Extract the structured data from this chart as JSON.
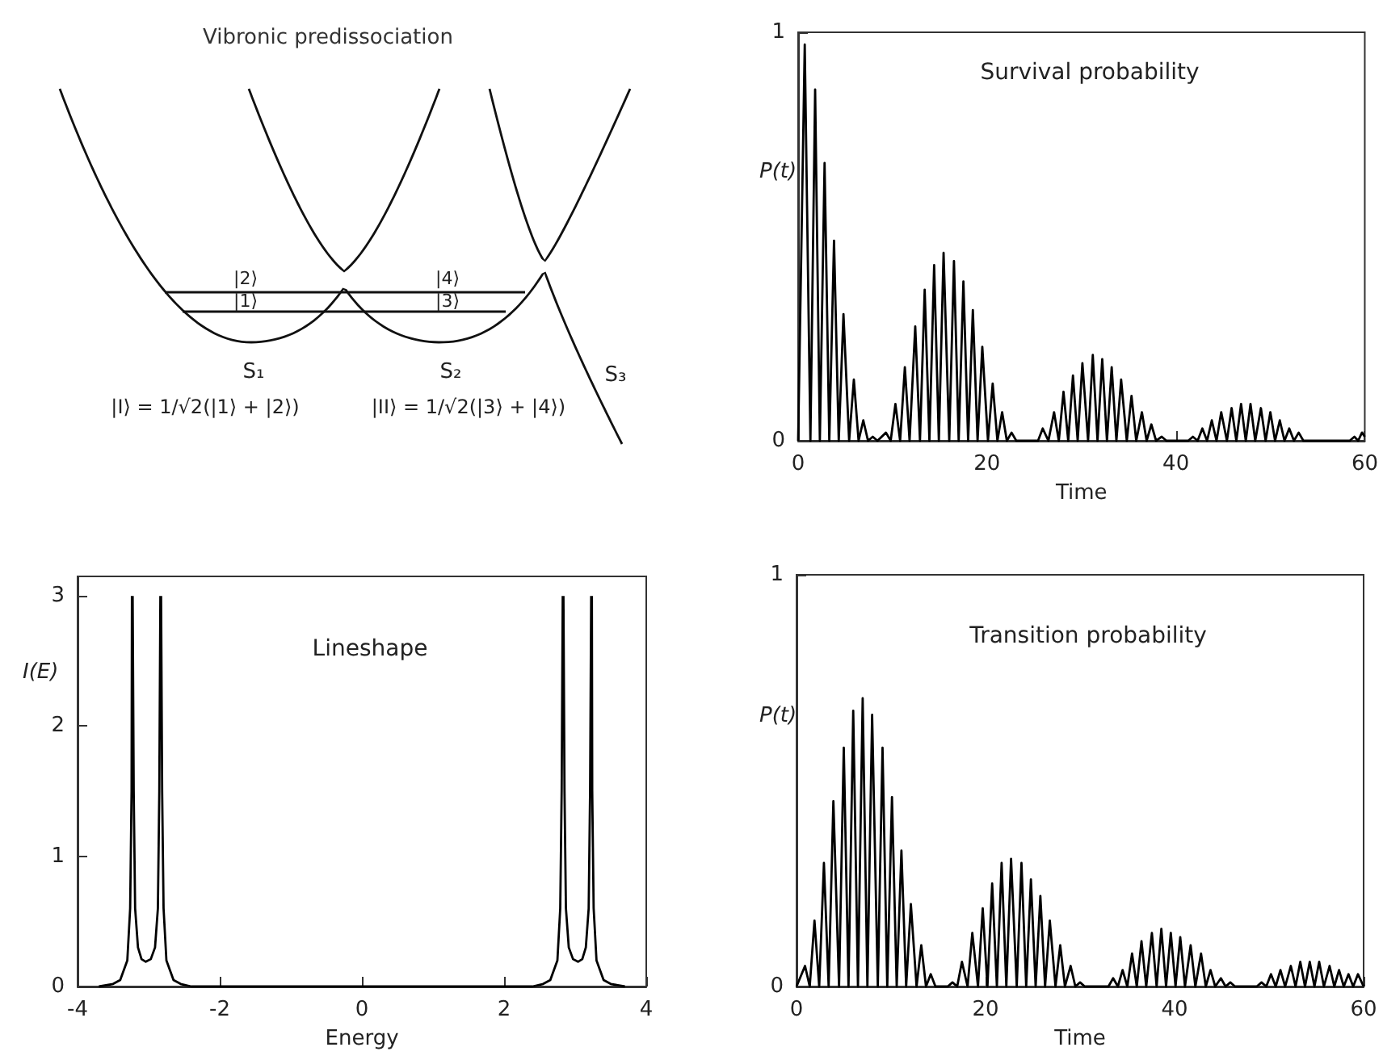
{
  "chart_data": [
    {
      "type": "other",
      "title": "Vibronic predissociation",
      "annotations": [
        "|2⟩",
        "|1⟩",
        "|4⟩",
        "|3⟩",
        "S₁",
        "S₂",
        "S₃",
        "|I⟩ = 1/√2(|1⟩ + |2⟩)",
        "|II⟩ = 1/√2(|3⟩ + |4⟩)"
      ]
    },
    {
      "type": "line",
      "title": "Survival probability",
      "xlabel": "Time",
      "ylabel": "P(t)",
      "xlim": [
        0,
        60
      ],
      "xticks": [
        0,
        20,
        40,
        60
      ],
      "ylim": [
        0,
        1
      ],
      "yticks": [
        0,
        1
      ],
      "series": [
        {
          "color": "#000000",
          "x": [
            0,
            0.7,
            1.3,
            1.8,
            2.3,
            2.8,
            3.3,
            3.8,
            4.3,
            4.8,
            5.4,
            5.9,
            6.4,
            6.9,
            7.4,
            7.9,
            8.4,
            9.3,
            9.8,
            10.3,
            10.8,
            11.3,
            11.8,
            12.4,
            12.9,
            13.4,
            13.9,
            14.4,
            14.9,
            15.4,
            16.0,
            16.5,
            17.0,
            17.5,
            18.0,
            18.5,
            19.0,
            19.5,
            20.1,
            20.6,
            21.1,
            21.6,
            22.1,
            22.6,
            23.1,
            25.4,
            25.9,
            26.5,
            27.1,
            27.6,
            28.1,
            28.6,
            29.1,
            29.6,
            30.1,
            30.7,
            31.2,
            31.7,
            32.2,
            32.7,
            33.2,
            33.7,
            34.2,
            34.8,
            35.3,
            35.8,
            36.4,
            36.9,
            37.4,
            37.9,
            38.5,
            39.0,
            41.3,
            41.8,
            42.3,
            42.8,
            43.3,
            43.8,
            44.3,
            44.8,
            45.4,
            45.9,
            46.4,
            46.9,
            47.4,
            47.9,
            48.4,
            49.0,
            49.5,
            50.0,
            50.5,
            51.0,
            51.5,
            52.0,
            52.5,
            53.0,
            53.5,
            58.4,
            58.9,
            59.3,
            59.7,
            60
          ],
          "values": [
            0,
            0.97,
            0,
            0.86,
            0,
            0.68,
            0,
            0.49,
            0,
            0.31,
            0,
            0.15,
            0,
            0.05,
            0,
            0.01,
            0,
            0.02,
            0,
            0.09,
            0,
            0.18,
            0,
            0.28,
            0,
            0.37,
            0,
            0.43,
            0,
            0.46,
            0,
            0.44,
            0,
            0.39,
            0,
            0.32,
            0,
            0.23,
            0,
            0.14,
            0,
            0.07,
            0,
            0.02,
            0,
            0,
            0.03,
            0,
            0.07,
            0,
            0.12,
            0,
            0.16,
            0,
            0.19,
            0,
            0.21,
            0,
            0.2,
            0,
            0.18,
            0,
            0.15,
            0,
            0.11,
            0,
            0.07,
            0,
            0.04,
            0,
            0.01,
            0,
            0,
            0.01,
            0,
            0.03,
            0,
            0.05,
            0,
            0.07,
            0,
            0.08,
            0,
            0.09,
            0,
            0.09,
            0,
            0.08,
            0,
            0.07,
            0,
            0.05,
            0,
            0.03,
            0,
            0.02,
            0,
            0,
            0.01,
            0,
            0.02,
            0.01
          ]
        }
      ]
    },
    {
      "type": "line",
      "title": "Lineshape",
      "xlabel": "Energy",
      "ylabel": "I(E)",
      "xlim": [
        -4,
        4
      ],
      "xticks": [
        -4,
        -2,
        0,
        2,
        4
      ],
      "ylim": [
        0,
        3.15
      ],
      "yticks": [
        0,
        1,
        2,
        3
      ],
      "series": [
        {
          "color": "#000000",
          "x": [
            -3.7,
            -3.5,
            -3.4,
            -3.3,
            -3.26,
            -3.24,
            -3.235,
            -3.23,
            -3.225,
            -3.21,
            -3.19,
            -3.15,
            -3.1,
            -3.04,
            -2.97,
            -2.91,
            -2.87,
            -2.85,
            -2.835,
            -2.83,
            -2.825,
            -2.81,
            -2.79,
            -2.75,
            -2.65,
            -2.55,
            -2.4,
            2.4,
            2.55,
            2.65,
            2.75,
            2.79,
            2.81,
            2.825,
            2.83,
            2.835,
            2.85,
            2.87,
            2.91,
            2.97,
            3.04,
            3.1,
            3.15,
            3.19,
            3.21,
            3.225,
            3.23,
            3.235,
            3.24,
            3.26,
            3.3,
            3.4,
            3.5,
            3.7
          ],
          "values": [
            0,
            0.02,
            0.05,
            0.2,
            0.6,
            1.5,
            3.0,
            null,
            3.0,
            1.5,
            0.6,
            0.3,
            0.21,
            0.19,
            0.21,
            0.3,
            0.6,
            1.5,
            3.0,
            null,
            3.0,
            1.5,
            0.6,
            0.2,
            0.05,
            0.02,
            0,
            0,
            0.02,
            0.05,
            0.2,
            0.6,
            1.5,
            3.0,
            null,
            3.0,
            1.5,
            0.6,
            0.3,
            0.21,
            0.19,
            0.21,
            0.3,
            0.6,
            1.5,
            3.0,
            null,
            3.0,
            1.5,
            0.6,
            0.2,
            0.05,
            0.02,
            0
          ]
        }
      ]
    },
    {
      "type": "line",
      "title": "Transition probability",
      "xlabel": "Time",
      "ylabel": "P(t)",
      "xlim": [
        0,
        60
      ],
      "xticks": [
        0,
        20,
        40,
        60
      ],
      "ylim": [
        0,
        1
      ],
      "yticks": [
        0,
        1
      ],
      "series": [
        {
          "color": "#000000",
          "x": [
            0,
            0.9,
            1.4,
            1.9,
            2.4,
            2.9,
            3.4,
            3.9,
            4.5,
            5.0,
            5.5,
            6.0,
            6.5,
            7.0,
            7.5,
            8.0,
            8.6,
            9.1,
            9.6,
            10.1,
            10.6,
            11.1,
            11.6,
            12.1,
            12.7,
            13.2,
            13.7,
            14.2,
            14.7,
            16.0,
            16.5,
            17.0,
            17.5,
            18.1,
            18.6,
            19.2,
            19.7,
            20.2,
            20.7,
            21.2,
            21.7,
            22.2,
            22.7,
            23.3,
            23.8,
            24.3,
            24.8,
            25.3,
            25.8,
            26.3,
            26.8,
            27.4,
            27.9,
            28.4,
            29.0,
            29.5,
            30.0,
            30.5,
            33.0,
            33.5,
            34.0,
            34.5,
            35.0,
            35.5,
            36.0,
            36.5,
            37.0,
            37.6,
            38.1,
            38.6,
            39.1,
            39.6,
            40.1,
            40.6,
            41.1,
            41.7,
            42.2,
            42.8,
            43.3,
            43.8,
            44.3,
            44.9,
            45.4,
            45.9,
            46.4,
            48.7,
            49.2,
            49.7,
            50.2,
            50.7,
            51.2,
            51.7,
            52.3,
            52.8,
            53.3,
            53.8,
            54.3,
            54.8,
            55.3,
            55.8,
            56.4,
            56.9,
            57.4,
            57.9,
            58.4,
            58.9,
            59.4,
            60
          ],
          "values": [
            0,
            0.05,
            0,
            0.16,
            0,
            0.3,
            0,
            0.45,
            0,
            0.58,
            0,
            0.67,
            0,
            0.7,
            0,
            0.66,
            0,
            0.58,
            0,
            0.46,
            0,
            0.33,
            0,
            0.2,
            0,
            0.1,
            0,
            0.03,
            0,
            0,
            0.01,
            0,
            0.06,
            0,
            0.13,
            0,
            0.19,
            0,
            0.25,
            0,
            0.3,
            0,
            0.31,
            0,
            0.3,
            0,
            0.26,
            0,
            0.22,
            0,
            0.16,
            0,
            0.1,
            0,
            0.05,
            0,
            0.01,
            0,
            0,
            0.02,
            0,
            0.04,
            0,
            0.08,
            0,
            0.11,
            0,
            0.13,
            0,
            0.14,
            0,
            0.13,
            0,
            0.12,
            0,
            0.1,
            0,
            0.08,
            0,
            0.04,
            0,
            0.02,
            0,
            0.01,
            0,
            0,
            0.01,
            0,
            0.03,
            0,
            0.04,
            0,
            0.05,
            0,
            0.06,
            0,
            0.06,
            0,
            0.06,
            0,
            0.05,
            0,
            0.04,
            0,
            0.03,
            0,
            0.03,
            0
          ]
        }
      ]
    }
  ]
}
